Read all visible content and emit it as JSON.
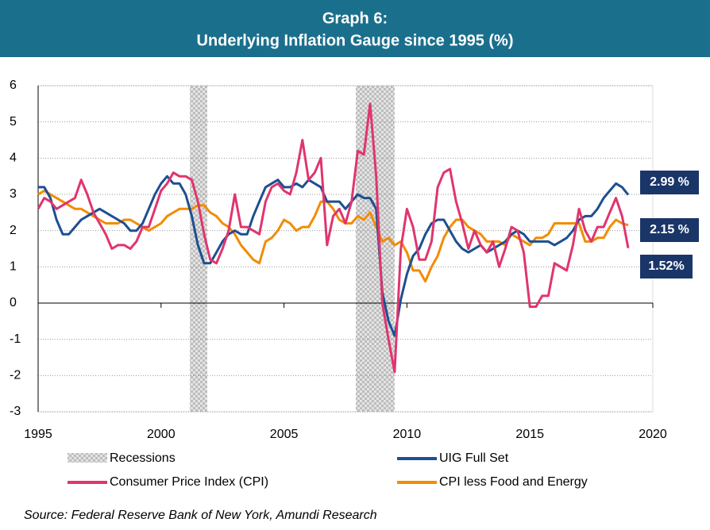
{
  "chart_data": {
    "type": "line",
    "title": "Graph 6:",
    "subtitle": "Underlying Inflation Gauge since 1995 (%)",
    "source": "Source: Federal Reserve Bank of New York, Amundi Research",
    "x": [
      1995,
      1995.25,
      1995.5,
      1995.75,
      1996,
      1996.25,
      1996.5,
      1996.75,
      1997,
      1997.25,
      1997.5,
      1997.75,
      1998,
      1998.25,
      1998.5,
      1998.75,
      1999,
      1999.25,
      1999.5,
      1999.75,
      2000,
      2000.25,
      2000.5,
      2000.75,
      2001,
      2001.25,
      2001.5,
      2001.75,
      2002,
      2002.25,
      2002.5,
      2002.75,
      2003,
      2003.25,
      2003.5,
      2003.75,
      2004,
      2004.25,
      2004.5,
      2004.75,
      2005,
      2005.25,
      2005.5,
      2005.75,
      2006,
      2006.25,
      2006.5,
      2006.75,
      2007,
      2007.25,
      2007.5,
      2007.75,
      2008,
      2008.25,
      2008.5,
      2008.75,
      2009,
      2009.25,
      2009.5,
      2009.75,
      2010,
      2010.25,
      2010.5,
      2010.75,
      2011,
      2011.25,
      2011.5,
      2011.75,
      2012,
      2012.25,
      2012.5,
      2012.75,
      2013,
      2013.25,
      2013.5,
      2013.75,
      2014,
      2014.25,
      2014.5,
      2014.75,
      2015,
      2015.25,
      2015.5,
      2015.75,
      2016,
      2016.25,
      2016.5,
      2016.75,
      2017,
      2017.25,
      2017.5,
      2017.75,
      2018,
      2018.25,
      2018.5,
      2018.75,
      2019
    ],
    "series": [
      {
        "name": "UIG Full Set",
        "color": "#1d4f91",
        "end_label": "2.99 %",
        "values": [
          3.2,
          3.2,
          2.9,
          2.3,
          1.9,
          1.9,
          2.1,
          2.3,
          2.4,
          2.5,
          2.6,
          2.5,
          2.4,
          2.3,
          2.2,
          2.0,
          2.0,
          2.2,
          2.6,
          3.0,
          3.3,
          3.5,
          3.3,
          3.3,
          3.0,
          2.4,
          1.6,
          1.1,
          1.1,
          1.4,
          1.7,
          1.9,
          2.0,
          1.9,
          1.9,
          2.4,
          2.8,
          3.2,
          3.3,
          3.4,
          3.2,
          3.2,
          3.3,
          3.2,
          3.4,
          3.3,
          3.2,
          2.8,
          2.8,
          2.8,
          2.6,
          2.8,
          3.0,
          2.9,
          2.9,
          2.6,
          0.3,
          -0.5,
          -0.9,
          0.1,
          0.8,
          1.3,
          1.5,
          1.9,
          2.2,
          2.3,
          2.3,
          2.0,
          1.7,
          1.5,
          1.4,
          1.5,
          1.6,
          1.4,
          1.5,
          1.6,
          1.7,
          1.9,
          2.0,
          1.9,
          1.7,
          1.7,
          1.7,
          1.7,
          1.6,
          1.7,
          1.8,
          2.0,
          2.3,
          2.4,
          2.4,
          2.6,
          2.9,
          3.1,
          3.3,
          3.2,
          2.99
        ]
      },
      {
        "name": "Consumer Price Index (CPI)",
        "color": "#e0356e",
        "end_label": "1.52%",
        "values": [
          2.6,
          2.9,
          2.8,
          2.6,
          2.7,
          2.8,
          2.9,
          3.4,
          3.0,
          2.5,
          2.2,
          1.9,
          1.5,
          1.6,
          1.6,
          1.5,
          1.7,
          2.1,
          2.1,
          2.6,
          3.1,
          3.3,
          3.6,
          3.5,
          3.5,
          3.4,
          2.8,
          1.9,
          1.2,
          1.1,
          1.5,
          2.0,
          3.0,
          2.1,
          2.1,
          2.0,
          1.9,
          2.8,
          3.2,
          3.3,
          3.1,
          3.0,
          3.6,
          4.5,
          3.4,
          3.6,
          4.0,
          1.6,
          2.4,
          2.6,
          2.2,
          2.8,
          4.2,
          4.1,
          5.5,
          3.5,
          0.0,
          -1.0,
          -1.9,
          1.5,
          2.6,
          2.1,
          1.2,
          1.2,
          1.7,
          3.2,
          3.6,
          3.7,
          2.8,
          2.2,
          1.5,
          2.0,
          1.6,
          1.4,
          1.7,
          1.0,
          1.5,
          2.1,
          2.0,
          1.4,
          -0.1,
          -0.1,
          0.2,
          0.2,
          1.1,
          1.0,
          0.9,
          1.6,
          2.6,
          2.0,
          1.7,
          2.1,
          2.1,
          2.5,
          2.9,
          2.4,
          1.52
        ]
      },
      {
        "name": "CPI less Food and Energy",
        "color": "#f28c00",
        "end_label": "2.15 %",
        "values": [
          3.0,
          3.1,
          3.0,
          2.9,
          2.8,
          2.7,
          2.6,
          2.6,
          2.5,
          2.4,
          2.3,
          2.2,
          2.2,
          2.2,
          2.3,
          2.3,
          2.2,
          2.1,
          2.0,
          2.1,
          2.2,
          2.4,
          2.5,
          2.6,
          2.6,
          2.6,
          2.7,
          2.7,
          2.5,
          2.4,
          2.2,
          2.1,
          1.9,
          1.6,
          1.4,
          1.2,
          1.1,
          1.7,
          1.8,
          2.0,
          2.3,
          2.2,
          2.0,
          2.1,
          2.1,
          2.4,
          2.8,
          2.8,
          2.6,
          2.3,
          2.2,
          2.2,
          2.4,
          2.3,
          2.5,
          2.1,
          1.7,
          1.8,
          1.6,
          1.7,
          1.4,
          0.9,
          0.9,
          0.6,
          1.0,
          1.3,
          1.8,
          2.1,
          2.3,
          2.3,
          2.1,
          2.0,
          1.9,
          1.7,
          1.7,
          1.7,
          1.6,
          1.9,
          1.8,
          1.7,
          1.6,
          1.8,
          1.8,
          1.9,
          2.2,
          2.2,
          2.2,
          2.2,
          2.2,
          1.7,
          1.7,
          1.8,
          1.8,
          2.1,
          2.3,
          2.2,
          2.15
        ]
      }
    ],
    "recession_label": "Recessions",
    "recessions": [
      [
        2001.17,
        2001.88
      ],
      [
        2007.92,
        2009.5
      ]
    ],
    "xlim": [
      1995,
      2020
    ],
    "xticks": [
      1995,
      2000,
      2005,
      2010,
      2015,
      2020
    ],
    "ylim": [
      -3,
      6
    ],
    "yticks": [
      -3,
      -2,
      -1,
      0,
      1,
      2,
      3,
      4,
      5,
      6
    ],
    "negative_tick_color": "#e8132b",
    "grid": true
  }
}
